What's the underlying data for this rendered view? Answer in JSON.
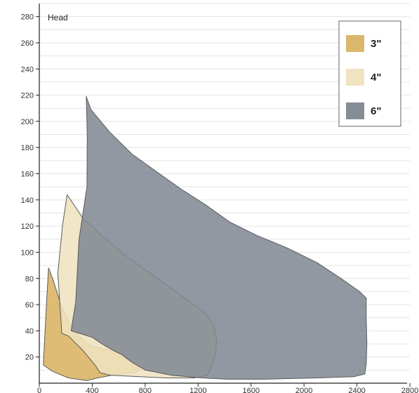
{
  "chart_data": {
    "type": "area",
    "title": "",
    "ylabel": "Head",
    "xlabel": "",
    "xlim": [
      0,
      2800
    ],
    "ylim": [
      0,
      290
    ],
    "xticks": [
      0,
      400,
      800,
      1200,
      1600,
      2000,
      2400,
      2800
    ],
    "yticks": [
      20,
      40,
      60,
      80,
      100,
      120,
      140,
      160,
      180,
      200,
      220,
      240,
      260,
      280
    ],
    "grid": true,
    "legend_position": "top-right",
    "series": [
      {
        "name": "3\"",
        "color": "#d9b363",
        "polygon": [
          [
            70,
            88
          ],
          [
            100,
            80
          ],
          [
            170,
            58
          ],
          [
            240,
            44
          ],
          [
            300,
            36
          ],
          [
            380,
            29
          ],
          [
            460,
            27
          ],
          [
            580,
            24
          ],
          [
            660,
            20
          ],
          [
            720,
            16
          ],
          [
            760,
            10
          ],
          [
            720,
            8
          ],
          [
            600,
            7
          ],
          [
            440,
            4
          ],
          [
            360,
            2
          ],
          [
            220,
            4
          ],
          [
            100,
            9
          ],
          [
            30,
            14
          ],
          [
            40,
            32
          ],
          [
            55,
            62
          ]
        ]
      },
      {
        "name": "4\"",
        "color": "#efe2bf",
        "polygon": [
          [
            210,
            144
          ],
          [
            330,
            126
          ],
          [
            470,
            113
          ],
          [
            620,
            100
          ],
          [
            780,
            88
          ],
          [
            960,
            75
          ],
          [
            1140,
            62
          ],
          [
            1260,
            53
          ],
          [
            1320,
            44
          ],
          [
            1340,
            32
          ],
          [
            1330,
            22
          ],
          [
            1300,
            12
          ],
          [
            1270,
            6
          ],
          [
            1170,
            4
          ],
          [
            960,
            4
          ],
          [
            760,
            5
          ],
          [
            540,
            6
          ],
          [
            460,
            8
          ],
          [
            420,
            14
          ],
          [
            330,
            25
          ],
          [
            220,
            36
          ],
          [
            170,
            38
          ],
          [
            140,
            84
          ],
          [
            175,
            120
          ]
        ]
      },
      {
        "name": "6\"",
        "color": "#7f8791",
        "polygon": [
          [
            355,
            219
          ],
          [
            390,
            209
          ],
          [
            530,
            192
          ],
          [
            700,
            175
          ],
          [
            880,
            162
          ],
          [
            1060,
            149
          ],
          [
            1260,
            136
          ],
          [
            1440,
            123
          ],
          [
            1640,
            113
          ],
          [
            1880,
            103
          ],
          [
            2100,
            92
          ],
          [
            2280,
            80
          ],
          [
            2420,
            70
          ],
          [
            2470,
            65
          ],
          [
            2470,
            50
          ],
          [
            2475,
            30
          ],
          [
            2470,
            15
          ],
          [
            2460,
            7
          ],
          [
            2380,
            5
          ],
          [
            2100,
            4
          ],
          [
            1700,
            3
          ],
          [
            1420,
            3
          ],
          [
            1230,
            4
          ],
          [
            1000,
            6
          ],
          [
            800,
            10
          ],
          [
            700,
            16
          ],
          [
            620,
            22
          ],
          [
            560,
            25
          ],
          [
            490,
            29
          ],
          [
            400,
            35
          ],
          [
            240,
            40
          ],
          [
            275,
            62
          ],
          [
            300,
            110
          ],
          [
            360,
            150
          ],
          [
            362,
            190
          ]
        ]
      }
    ]
  }
}
